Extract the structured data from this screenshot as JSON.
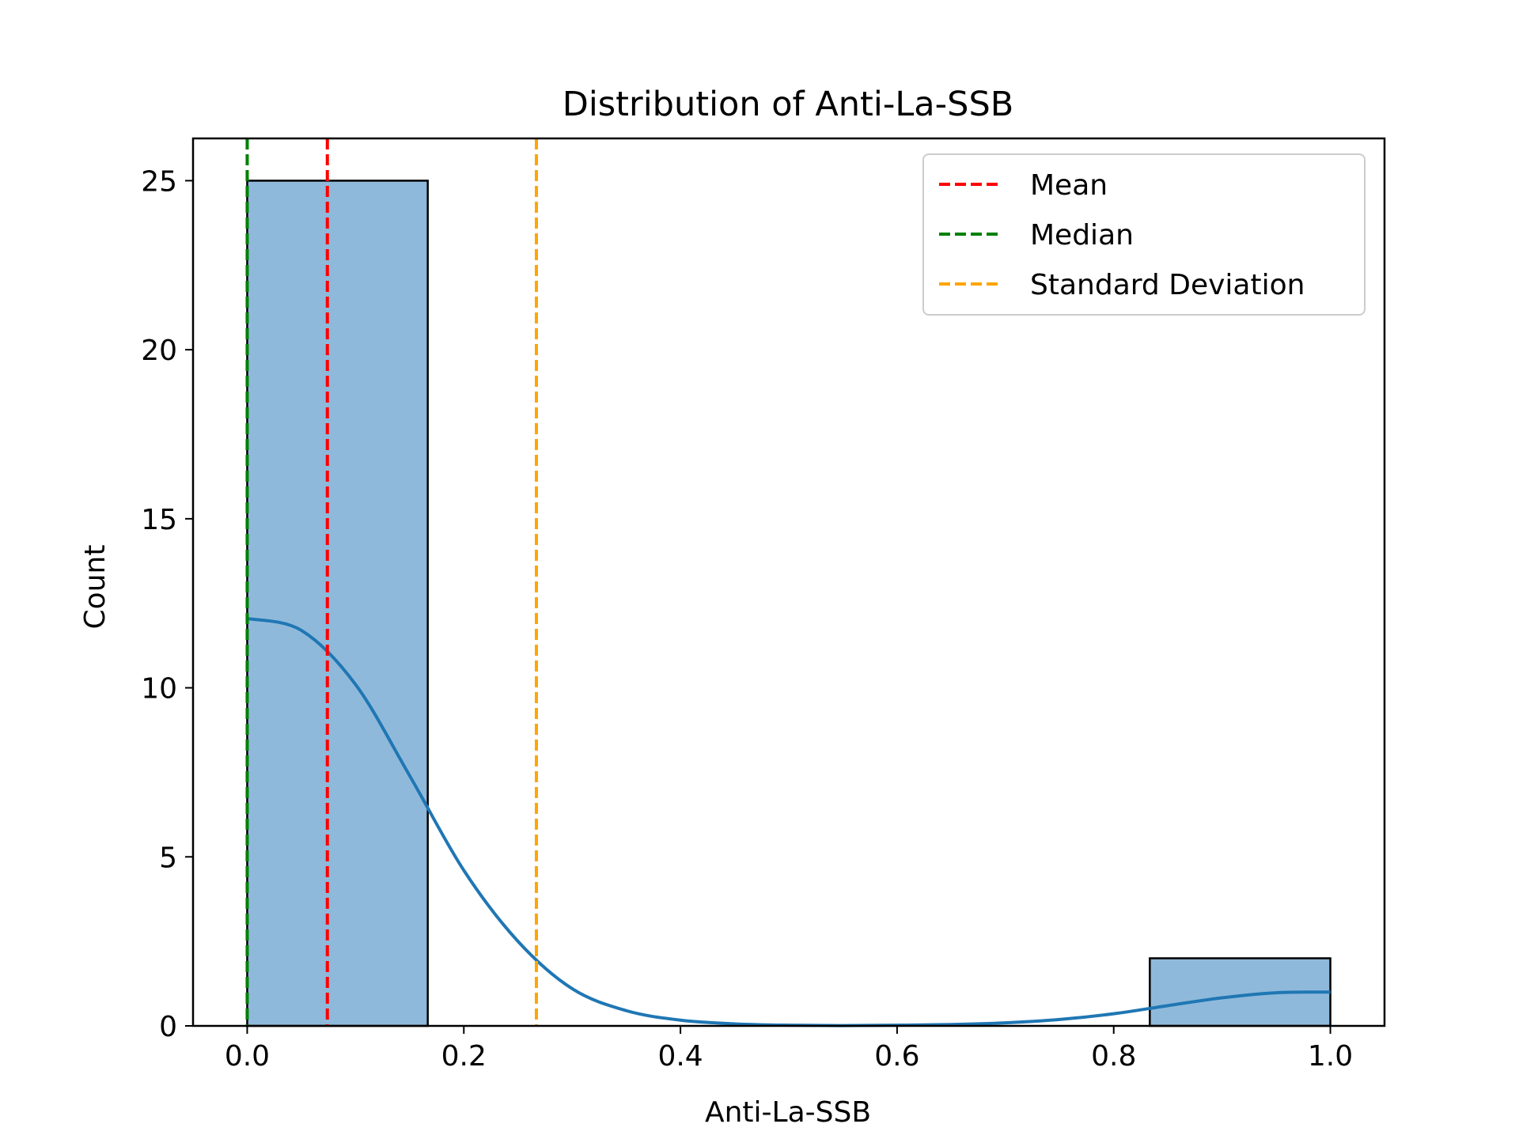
{
  "chart_data": {
    "type": "bar",
    "title": "Distribution of Anti-La-SSB",
    "xlabel": "Anti-La-SSB",
    "ylabel": "Count",
    "xlim": [
      -0.05,
      1.05
    ],
    "ylim": [
      0,
      26.25
    ],
    "x_ticks": [
      0.0,
      0.2,
      0.4,
      0.6,
      0.8,
      1.0
    ],
    "x_tick_labels": [
      "0.0",
      "0.2",
      "0.4",
      "0.6",
      "0.8",
      "1.0"
    ],
    "y_ticks": [
      0,
      5,
      10,
      15,
      20,
      25
    ],
    "y_tick_labels": [
      "0",
      "5",
      "10",
      "15",
      "20",
      "25"
    ],
    "grid": false,
    "bins": [
      {
        "x0": 0.0,
        "x1": 0.1667,
        "count": 25
      },
      {
        "x0": 0.1667,
        "x1": 0.3333,
        "count": 0
      },
      {
        "x0": 0.3333,
        "x1": 0.5,
        "count": 0
      },
      {
        "x0": 0.5,
        "x1": 0.6667,
        "count": 0
      },
      {
        "x0": 0.6667,
        "x1": 0.8333,
        "count": 0
      },
      {
        "x0": 0.8333,
        "x1": 1.0,
        "count": 2
      }
    ],
    "bar_color": "#8fb9da",
    "bar_edge_color": "#000000",
    "kde": {
      "color": "#1f77b4",
      "points": [
        [
          0.0,
          12.05
        ],
        [
          0.05,
          11.7
        ],
        [
          0.1,
          10.1
        ],
        [
          0.15,
          7.4
        ],
        [
          0.2,
          4.6
        ],
        [
          0.25,
          2.5
        ],
        [
          0.3,
          1.1
        ],
        [
          0.35,
          0.45
        ],
        [
          0.4,
          0.17
        ],
        [
          0.45,
          0.06
        ],
        [
          0.5,
          0.02
        ],
        [
          0.55,
          0.01
        ],
        [
          0.6,
          0.02
        ],
        [
          0.65,
          0.04
        ],
        [
          0.7,
          0.09
        ],
        [
          0.75,
          0.19
        ],
        [
          0.8,
          0.36
        ],
        [
          0.85,
          0.6
        ],
        [
          0.9,
          0.83
        ],
        [
          0.95,
          0.98
        ],
        [
          1.0,
          1.0
        ]
      ]
    },
    "reference_lines": [
      {
        "name": "Mean",
        "x": 0.074,
        "color": "#ff0000",
        "style": "dashed"
      },
      {
        "name": "Median",
        "x": 0.0,
        "color": "#008000",
        "style": "dashed"
      },
      {
        "name": "Standard Deviation",
        "x": 0.267,
        "color": "#ffa500",
        "style": "dashed"
      }
    ],
    "legend": {
      "placement": "top-right",
      "entries": [
        "Mean",
        "Median",
        "Standard Deviation"
      ]
    }
  }
}
